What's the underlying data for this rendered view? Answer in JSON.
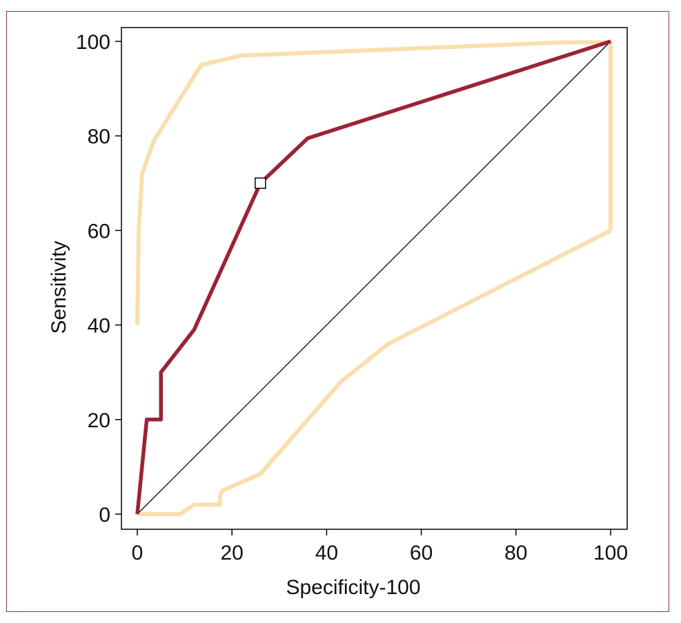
{
  "chart_data": {
    "type": "line",
    "title": "",
    "xlabel": "Specificity-100",
    "ylabel": "Sensitivity",
    "xlim": [
      0,
      100
    ],
    "ylim": [
      0,
      100
    ],
    "xticks": [
      "0",
      "20",
      "40",
      "60",
      "80",
      "100"
    ],
    "yticks": [
      "0",
      "20",
      "40",
      "60",
      "80",
      "100"
    ],
    "grid": false,
    "colors": {
      "roc": "#9b2335",
      "ci": "#f8dfad",
      "reference": "#000000",
      "frame": "#9b2a3c"
    },
    "series": [
      {
        "role": "roc",
        "x": [
          0,
          2,
          5,
          5,
          12,
          26,
          36,
          100
        ],
        "y": [
          0,
          20,
          20,
          30,
          39,
          70,
          79.5,
          100
        ]
      },
      {
        "role": "ci-upper",
        "x": [
          0,
          0.3,
          1,
          3.5,
          13.5,
          22,
          90,
          100,
          100
        ],
        "y": [
          40,
          60,
          72,
          79,
          95,
          97,
          99.8,
          99.8,
          60
        ]
      },
      {
        "role": "ci-lower",
        "x": [
          0,
          9,
          12,
          17.5,
          17.5,
          18,
          26,
          43,
          53,
          100
        ],
        "y": [
          0,
          0,
          2,
          2,
          4,
          5,
          8.5,
          28,
          36,
          60
        ]
      },
      {
        "role": "reference",
        "x": [
          0,
          100
        ],
        "y": [
          0,
          100
        ]
      }
    ],
    "marker": {
      "x": 26,
      "y": 70,
      "shape": "square"
    }
  }
}
